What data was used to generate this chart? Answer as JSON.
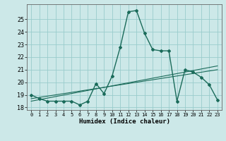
{
  "xlabel": "Humidex (Indice chaleur)",
  "bg_color": "#cce8e8",
  "grid_color": "#99cccc",
  "line_color": "#1a6b5a",
  "xlim": [
    -0.5,
    23.5
  ],
  "ylim": [
    17.8,
    26.2
  ],
  "yticks": [
    18,
    19,
    20,
    21,
    22,
    23,
    24,
    25
  ],
  "xticks": [
    0,
    1,
    2,
    3,
    4,
    5,
    6,
    7,
    8,
    9,
    10,
    11,
    12,
    13,
    14,
    15,
    16,
    17,
    18,
    19,
    20,
    21,
    22,
    23
  ],
  "main_x": [
    0,
    1,
    2,
    3,
    4,
    5,
    6,
    7,
    8,
    9,
    10,
    11,
    12,
    13,
    14,
    15,
    16,
    17,
    18,
    19,
    20,
    21,
    22,
    23
  ],
  "main_y": [
    19.0,
    18.7,
    18.5,
    18.5,
    18.5,
    18.5,
    18.2,
    18.5,
    19.9,
    19.1,
    20.5,
    22.8,
    25.6,
    25.7,
    23.9,
    22.6,
    22.5,
    22.5,
    18.5,
    21.0,
    20.8,
    20.4,
    19.8,
    18.6
  ],
  "line2_x": [
    0,
    23
  ],
  "line2_y": [
    18.7,
    21.0
  ],
  "line3_x": [
    0,
    23
  ],
  "line3_y": [
    18.5,
    21.3
  ]
}
